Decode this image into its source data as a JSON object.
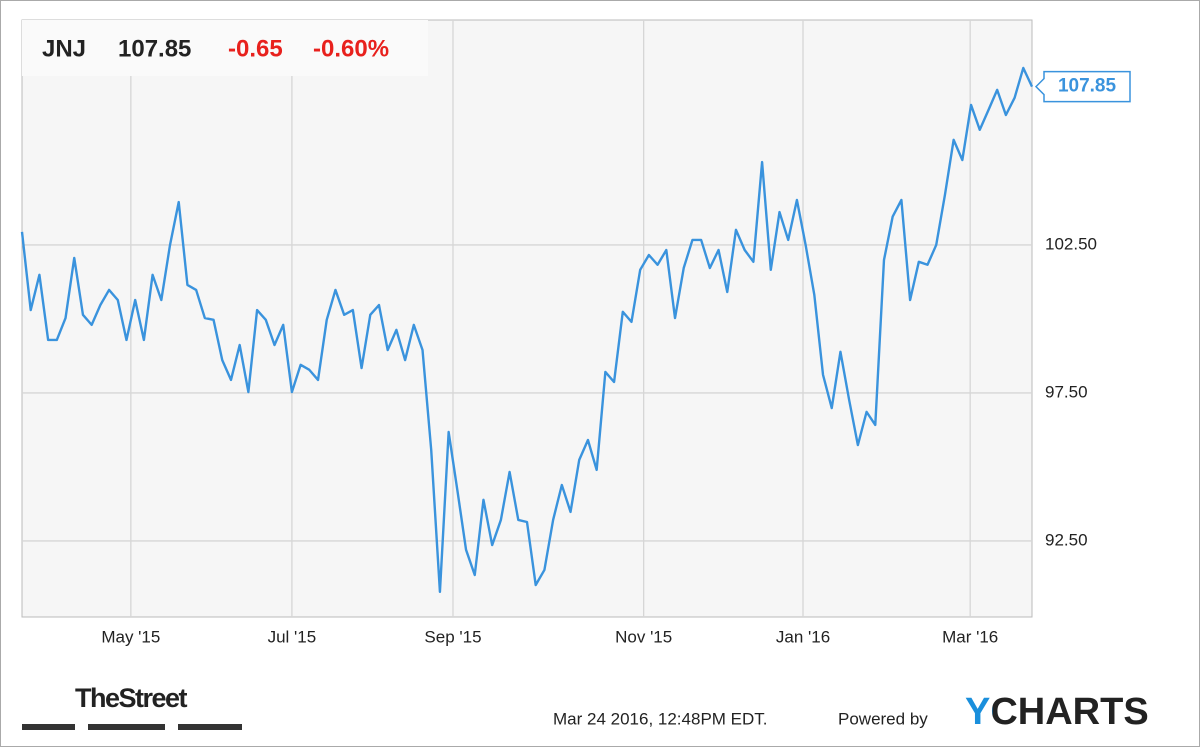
{
  "header": {
    "ticker": "JNJ",
    "price": "107.85",
    "change": "-0.65",
    "change_pct": "-0.60%"
  },
  "chart_data": {
    "type": "line",
    "color": "#3a93dd",
    "values": [
      102.94,
      100.3,
      101.49,
      99.29,
      99.29,
      100.03,
      102.06,
      100.14,
      99.8,
      100.47,
      100.98,
      100.64,
      99.29,
      100.64,
      99.29,
      101.49,
      100.64,
      102.5,
      103.95,
      101.15,
      100.98,
      100.03,
      99.97,
      98.61,
      97.94,
      99.12,
      97.53,
      100.3,
      99.97,
      99.12,
      99.8,
      97.53,
      98.45,
      98.28,
      97.94,
      99.97,
      100.98,
      100.14,
      100.3,
      98.34,
      100.14,
      100.47,
      98.95,
      99.63,
      98.61,
      99.8,
      98.95,
      95.57,
      90.78,
      96.18,
      94.22,
      92.2,
      91.35,
      93.89,
      92.36,
      93.21,
      94.83,
      93.21,
      93.14,
      91.01,
      91.52,
      93.21,
      94.39,
      93.48,
      95.24,
      95.91,
      94.9,
      98.21,
      97.87,
      100.24,
      99.9,
      101.66,
      102.16,
      101.83,
      102.33,
      100.03,
      101.72,
      102.67,
      102.67,
      101.72,
      102.33,
      100.91,
      103.01,
      102.33,
      101.93,
      105.3,
      101.66,
      103.61,
      102.67,
      104.02,
      102.5,
      100.81,
      98.11,
      96.99,
      98.89,
      97.26,
      95.74,
      96.86,
      96.42,
      101.99,
      103.46,
      104.02,
      100.64,
      101.93,
      101.83,
      102.5,
      104.19,
      106.05,
      105.37,
      107.23,
      106.39,
      107.06,
      107.74,
      106.89,
      107.47,
      108.48,
      107.85
    ],
    "value_labels": {
      "116": "107.85"
    },
    "ylim": [
      89.93,
      110.1
    ],
    "yticks": [
      {
        "value": 92.5,
        "label": "92.50"
      },
      {
        "value": 97.5,
        "label": "97.50"
      },
      {
        "value": 102.5,
        "label": "102.50"
      }
    ],
    "xticks": [
      {
        "value": 12.5,
        "label": "May '15"
      },
      {
        "value": 31,
        "label": "Jul '15"
      },
      {
        "value": 49.5,
        "label": "Sep '15"
      },
      {
        "value": 71.4,
        "label": "Nov '15"
      },
      {
        "value": 89.7,
        "label": "Jan '16"
      },
      {
        "value": 108.9,
        "label": "Mar '16"
      }
    ],
    "grid": true
  },
  "footer": {
    "source": "TheStreet",
    "timestamp": "Mar 24 2016, 12:48PM EDT.",
    "powered": "Powered by",
    "brand": "YCHARTS"
  }
}
